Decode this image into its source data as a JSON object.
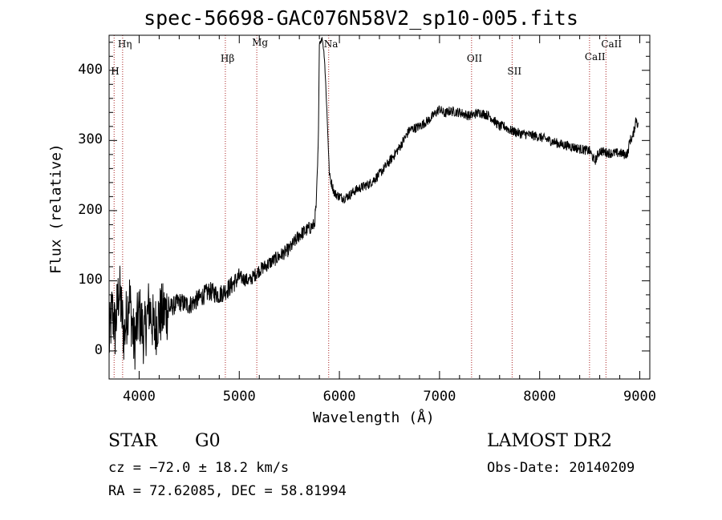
{
  "header": {
    "title": "spec-56698-GAC076N58V2_sp10-005.fits"
  },
  "footer": {
    "class": "STAR",
    "subclass": "G0",
    "survey": "LAMOST DR2",
    "cz": "cz = −72.0 ± 18.2 km/s",
    "obs_date": "Obs-Date: 20140209",
    "coords": "RA =  72.62085, DEC =  58.81994"
  },
  "chart_data": {
    "type": "line",
    "title": "spec-56698-GAC076N58V2_sp10-005.fits",
    "xlabel": "Wavelength (Å)",
    "ylabel": "Flux (relative)",
    "xlim": [
      3700,
      9100
    ],
    "ylim": [
      -40,
      450
    ],
    "x_ticks": [
      4000,
      5000,
      6000,
      7000,
      8000,
      9000
    ],
    "x_tick_labels": [
      "4000",
      "5000",
      "6000",
      "7000",
      "8000",
      "9000"
    ],
    "y_ticks": [
      0,
      100,
      200,
      300,
      400
    ],
    "y_tick_labels": [
      "0",
      "100",
      "200",
      "300",
      "400"
    ],
    "grid": false,
    "line_color": "#000000",
    "marker_color": "#aa2222",
    "spectral_lines": [
      {
        "label": "Hη",
        "x": 3835
      },
      {
        "label": "H",
        "x": 3750
      },
      {
        "label": "Hβ",
        "x": 4861
      },
      {
        "label": "Mg",
        "x": 5175
      },
      {
        "label": "Na",
        "x": 5893
      },
      {
        "label": "OII",
        "x": 7320
      },
      {
        "label": "SII",
        "x": 7725
      },
      {
        "label": "CaII",
        "x": 8498
      },
      {
        "label": "CaII",
        "x": 8662
      }
    ],
    "series": [
      {
        "name": "",
        "x": [
          3700,
          3730,
          3760,
          3800,
          3850,
          3900,
          3950,
          4000,
          4050,
          4100,
          4150,
          4200,
          4300,
          4400,
          4500,
          4600,
          4700,
          4800,
          4900,
          5000,
          5100,
          5200,
          5300,
          5400,
          5500,
          5600,
          5700,
          5750,
          5770,
          5790,
          5800,
          5830,
          5850,
          5870,
          5890,
          5900,
          5920,
          5950,
          6000,
          6050,
          6100,
          6150,
          6200,
          6300,
          6400,
          6500,
          6600,
          6700,
          6800,
          6900,
          7000,
          7050,
          7100,
          7200,
          7300,
          7400,
          7500,
          7600,
          7650,
          7700,
          7800,
          7900,
          8000,
          8100,
          8200,
          8300,
          8400,
          8500,
          8550,
          8600,
          8700,
          8800,
          8850,
          8880,
          8900,
          8930,
          8950,
          8960,
          8970,
          8980
        ],
        "y": [
          10,
          60,
          30,
          90,
          20,
          80,
          10,
          55,
          20,
          65,
          30,
          50,
          60,
          70,
          65,
          75,
          85,
          80,
          90,
          105,
          100,
          115,
          125,
          135,
          145,
          165,
          175,
          180,
          210,
          300,
          440,
          445,
          420,
          360,
          290,
          250,
          240,
          225,
          220,
          218,
          222,
          228,
          232,
          238,
          252,
          270,
          290,
          315,
          320,
          330,
          345,
          338,
          342,
          340,
          335,
          340,
          335,
          320,
          320,
          315,
          310,
          308,
          305,
          300,
          295,
          292,
          288,
          285,
          270,
          285,
          282,
          282,
          280,
          282,
          300,
          305,
          320,
          330,
          330,
          320
        ]
      }
    ]
  }
}
